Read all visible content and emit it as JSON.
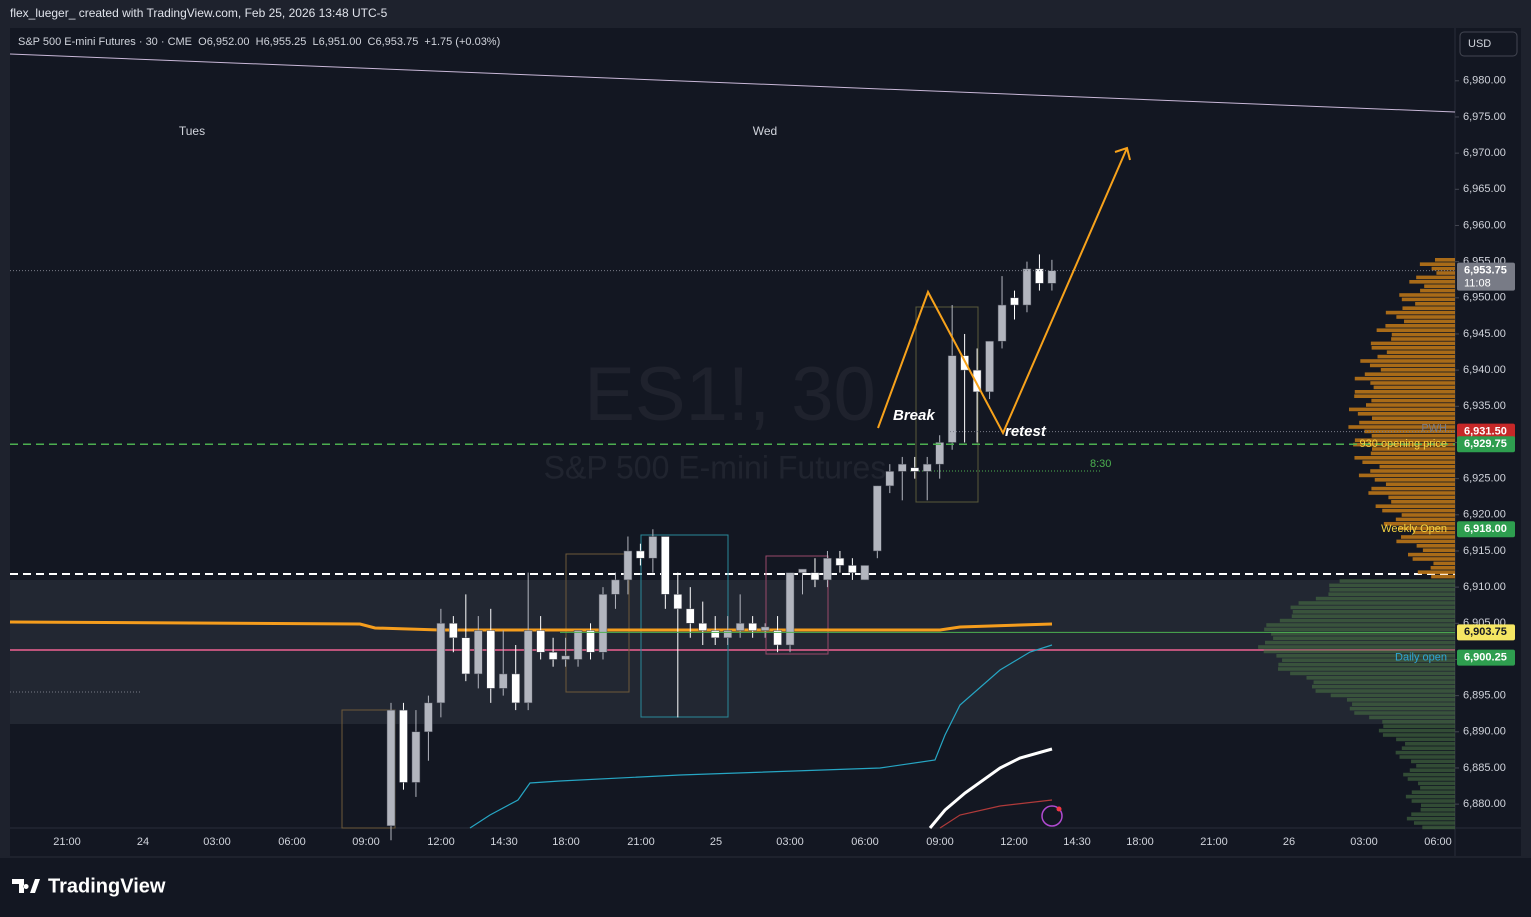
{
  "header": "flex_lueger_ created with TradingView.com, Feb 25, 2026 13:48 UTC-5",
  "symbol_info": "S&P 500 E-mini Futures · 30 · CME  O6,952.00  H6,955.25  L6,951.00  C6,953.75  +1.75 (+0.03%)",
  "currency": "USD",
  "watermark": {
    "symbol": "ES1!, 30",
    "name": "S&P 500 E-mini Futures"
  },
  "day_labels": [
    "Tues",
    "Wed"
  ],
  "annotations": {
    "break": "Break",
    "retest": "retest",
    "time": "8:30"
  },
  "price_axis": {
    "ylim": [
      6876.7,
      6987.3
    ],
    "ticks": [
      {
        "value": 6880,
        "label": "6,880.00"
      },
      {
        "value": 6885,
        "label": "6,885.00"
      },
      {
        "value": 6890,
        "label": "6,890.00"
      },
      {
        "value": 6895,
        "label": "6,895.00"
      },
      {
        "value": 6900,
        "label": "6,900.00"
      },
      {
        "value": 6905,
        "label": "6,905.00"
      },
      {
        "value": 6910,
        "label": "6,910.00"
      },
      {
        "value": 6915,
        "label": "6,915.00"
      },
      {
        "value": 6920,
        "label": "6,920.00"
      },
      {
        "value": 6925,
        "label": "6,925.00"
      },
      {
        "value": 6930,
        "label": "6,930.00"
      },
      {
        "value": 6935,
        "label": "6,935.00"
      },
      {
        "value": 6940,
        "label": "6,940.00"
      },
      {
        "value": 6945,
        "label": "6,945.00"
      },
      {
        "value": 6950,
        "label": "6,950.00"
      },
      {
        "value": 6955,
        "label": "6,955.00"
      },
      {
        "value": 6960,
        "label": "6,960.00"
      },
      {
        "value": 6965,
        "label": "6,965.00"
      },
      {
        "value": 6970,
        "label": "6,970.00"
      },
      {
        "value": 6975,
        "label": "6,975.00"
      },
      {
        "value": 6980,
        "label": "6,980.00"
      }
    ]
  },
  "time_axis": [
    "21:00",
    "24",
    "03:00",
    "06:00",
    "09:00",
    "12:00",
    "14:30",
    "18:00",
    "21:00",
    "25",
    "03:00",
    "06:00",
    "09:00",
    "12:00",
    "14:30",
    "18:00",
    "21:00",
    "26",
    "03:00",
    "06:00"
  ],
  "price_badges": [
    {
      "label": "6,953.75",
      "sub": "11:08",
      "value": 6953.75,
      "color": "#787b86"
    },
    {
      "label": "6,931.50",
      "value": 6931.5,
      "color": "#c62828"
    },
    {
      "label": "6,929.75",
      "value": 6929.75,
      "color": "#2e9e4f"
    },
    {
      "label": "6,918.00",
      "value": 6918,
      "color": "#2e9e4f"
    },
    {
      "label": "6,903.75",
      "value": 6903.75,
      "color": "#f5e663"
    },
    {
      "label": "6,900.25",
      "value": 6900.25,
      "color": "#2e9e4f"
    }
  ],
  "level_labels": [
    {
      "label": "PWH",
      "value": 6931.5,
      "color": "#787b86"
    },
    {
      "label": "930 opening price",
      "value": 6929.75,
      "color": "#f5d442"
    },
    {
      "label": "Weekly Open",
      "value": 6918,
      "color": "#f5d442"
    },
    {
      "label": "Daily open",
      "value": 6900.25,
      "color": "#2ea6d6"
    }
  ],
  "candles": [
    {
      "o": 6877,
      "h": 6894,
      "l": 6875,
      "c": 6893
    },
    {
      "o": 6893,
      "h": 6894,
      "l": 6882,
      "c": 6883
    },
    {
      "o": 6883,
      "h": 6893,
      "l": 6881,
      "c": 6890
    },
    {
      "o": 6890,
      "h": 6895,
      "l": 6886,
      "c": 6894
    },
    {
      "o": 6894,
      "h": 6907,
      "l": 6892,
      "c": 6905
    },
    {
      "o": 6905,
      "h": 6906,
      "l": 6901,
      "c": 6903
    },
    {
      "o": 6903,
      "h": 6909,
      "l": 6897,
      "c": 6898
    },
    {
      "o": 6898,
      "h": 6906,
      "l": 6896,
      "c": 6904
    },
    {
      "o": 6904,
      "h": 6907,
      "l": 6894,
      "c": 6896
    },
    {
      "o": 6896,
      "h": 6904,
      "l": 6895,
      "c": 6898
    },
    {
      "o": 6898,
      "h": 6902,
      "l": 6893,
      "c": 6894
    },
    {
      "o": 6894,
      "h": 6912,
      "l": 6893,
      "c": 6904
    },
    {
      "o": 6904,
      "h": 6906,
      "l": 6900,
      "c": 6901
    },
    {
      "o": 6901,
      "h": 6903,
      "l": 6899,
      "c": 6900
    },
    {
      "o": 6900,
      "h": 6903,
      "l": 6899,
      "c": 6900.5
    },
    {
      "o": 6900,
      "h": 6904,
      "l": 6899,
      "c": 6904
    },
    {
      "o": 6904,
      "h": 6905,
      "l": 6900,
      "c": 6901
    },
    {
      "o": 6901,
      "h": 6910,
      "l": 6900,
      "c": 6909
    },
    {
      "o": 6909,
      "h": 6912,
      "l": 6907,
      "c": 6911
    },
    {
      "o": 6911,
      "h": 6917,
      "l": 6909,
      "c": 6915
    },
    {
      "o": 6915,
      "h": 6916,
      "l": 6913,
      "c": 6914
    },
    {
      "o": 6914,
      "h": 6918,
      "l": 6912,
      "c": 6917
    },
    {
      "o": 6917,
      "h": 6917,
      "l": 6907,
      "c": 6909
    },
    {
      "o": 6909,
      "h": 6912,
      "l": 6892,
      "c": 6907
    },
    {
      "o": 6907,
      "h": 6910,
      "l": 6903,
      "c": 6905
    },
    {
      "o": 6905,
      "h": 6908,
      "l": 6902,
      "c": 6904
    },
    {
      "o": 6904,
      "h": 6906,
      "l": 6902,
      "c": 6903
    },
    {
      "o": 6903,
      "h": 6906,
      "l": 6902,
      "c": 6904
    },
    {
      "o": 6904,
      "h": 6909,
      "l": 6903,
      "c": 6905
    },
    {
      "o": 6905,
      "h": 6906,
      "l": 6903,
      "c": 6904
    },
    {
      "o": 6904,
      "h": 6905,
      "l": 6903,
      "c": 6904.5
    },
    {
      "o": 6904,
      "h": 6906,
      "l": 6901,
      "c": 6902
    },
    {
      "o": 6902,
      "h": 6912,
      "l": 6901,
      "c": 6912
    },
    {
      "o": 6912,
      "h": 6912,
      "l": 6909,
      "c": 6912.5
    },
    {
      "o": 6912,
      "h": 6914,
      "l": 6910,
      "c": 6911
    },
    {
      "o": 6911,
      "h": 6915,
      "l": 6910,
      "c": 6914
    },
    {
      "o": 6914,
      "h": 6915,
      "l": 6912,
      "c": 6913
    },
    {
      "o": 6913,
      "h": 6914,
      "l": 6911,
      "c": 6912
    },
    {
      "o": 6911,
      "h": 6913,
      "l": 6911,
      "c": 6913
    },
    {
      "o": 6915,
      "h": 6924,
      "l": 6914,
      "c": 6924
    },
    {
      "o": 6924,
      "h": 6927,
      "l": 6923,
      "c": 6926
    },
    {
      "o": 6926,
      "h": 6928,
      "l": 6922,
      "c": 6927
    },
    {
      "o": 6926.5,
      "h": 6928,
      "l": 6925,
      "c": 6926
    },
    {
      "o": 6926,
      "h": 6928,
      "l": 6922,
      "c": 6927
    },
    {
      "o": 6927,
      "h": 6931,
      "l": 6925,
      "c": 6930
    },
    {
      "o": 6930,
      "h": 6949,
      "l": 6929,
      "c": 6942
    },
    {
      "o": 6942,
      "h": 6945,
      "l": 6930,
      "c": 6940
    },
    {
      "o": 6940,
      "h": 6943,
      "l": 6930,
      "c": 6937
    },
    {
      "o": 6937,
      "h": 6944,
      "l": 6936,
      "c": 6944
    },
    {
      "o": 6944,
      "h": 6953,
      "l": 6943,
      "c": 6949
    },
    {
      "o": 6950,
      "h": 6951,
      "l": 6947,
      "c": 6949
    },
    {
      "o": 6949,
      "h": 6955,
      "l": 6948,
      "c": 6954
    },
    {
      "o": 6954,
      "h": 6956,
      "l": 6951,
      "c": 6952
    },
    {
      "o": 6952,
      "h": 6955.25,
      "l": 6951,
      "c": 6953.75
    }
  ],
  "footer": "TradingView"
}
